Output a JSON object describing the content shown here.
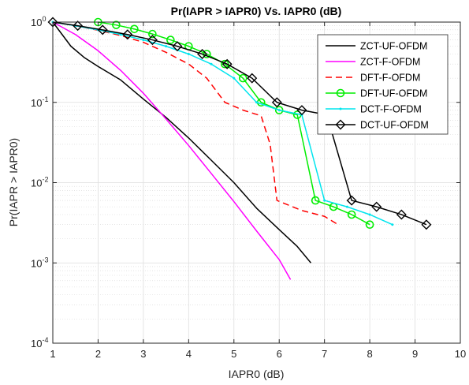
{
  "chart_data": {
    "type": "line",
    "title": "Pr(IAPR > IAPR0) Vs. IAPR0 (dB)",
    "xlabel": "IAPR0 (dB)",
    "ylabel": "Pr(IAPR > IAPR0)",
    "xlim": [
      1,
      10
    ],
    "ylim": [
      0.0001,
      1
    ],
    "yscale": "log",
    "grid": true,
    "minor_grid": true,
    "legend_position": "top-right",
    "x_ticks": [
      "1",
      "2",
      "3",
      "4",
      "5",
      "6",
      "7",
      "8",
      "9",
      "10"
    ],
    "y_ticks": [
      {
        "base": "10",
        "exp": "0"
      },
      {
        "base": "10",
        "exp": "-1"
      },
      {
        "base": "10",
        "exp": "-2"
      },
      {
        "base": "10",
        "exp": "-3"
      },
      {
        "base": "10",
        "exp": "-4"
      }
    ],
    "series": [
      {
        "name": "ZCT-UF-OFDM",
        "color": "#000000",
        "dash": "",
        "marker": "none",
        "points": [
          [
            1,
            1
          ],
          [
            1.4,
            0.5
          ],
          [
            1.7,
            0.36
          ],
          [
            2,
            0.28
          ],
          [
            2.5,
            0.19
          ],
          [
            3,
            0.11
          ],
          [
            3.5,
            0.065
          ],
          [
            4,
            0.036
          ],
          [
            4.5,
            0.019
          ],
          [
            5,
            0.01
          ],
          [
            5.5,
            0.0048
          ],
          [
            6,
            0.0026
          ],
          [
            6.4,
            0.0016
          ],
          [
            6.7,
            0.001
          ]
        ]
      },
      {
        "name": "ZCT-F-OFDM",
        "color": "#ff00ff",
        "dash": "",
        "marker": "none",
        "points": [
          [
            1,
            1
          ],
          [
            1.5,
            0.7
          ],
          [
            2,
            0.44
          ],
          [
            2.5,
            0.25
          ],
          [
            3,
            0.13
          ],
          [
            3.5,
            0.062
          ],
          [
            4,
            0.029
          ],
          [
            4.5,
            0.013
          ],
          [
            5,
            0.0058
          ],
          [
            5.5,
            0.0025
          ],
          [
            6,
            0.0011
          ],
          [
            6.25,
            0.00062
          ]
        ]
      },
      {
        "name": "DFT-F-OFDM",
        "color": "#ff0000",
        "dash": "8,5",
        "marker": "none",
        "points": [
          [
            1,
            1
          ],
          [
            1.6,
            0.88
          ],
          [
            2,
            0.79
          ],
          [
            2.5,
            0.68
          ],
          [
            3,
            0.56
          ],
          [
            3.5,
            0.42
          ],
          [
            4,
            0.3
          ],
          [
            4.4,
            0.2
          ],
          [
            4.8,
            0.1
          ],
          [
            5.2,
            0.08
          ],
          [
            5.6,
            0.068
          ],
          [
            5.8,
            0.03
          ],
          [
            5.95,
            0.006
          ],
          [
            6.5,
            0.0045
          ],
          [
            7,
            0.0038
          ],
          [
            7.3,
            0.003
          ]
        ]
      },
      {
        "name": "DFT-UF-OFDM",
        "color": "#00ee00",
        "dash": "",
        "marker": "circle",
        "points": [
          [
            2,
            1
          ],
          [
            2.4,
            0.92
          ],
          [
            2.8,
            0.82
          ],
          [
            3.2,
            0.71
          ],
          [
            3.6,
            0.6
          ],
          [
            4,
            0.5
          ],
          [
            4.4,
            0.4
          ],
          [
            4.8,
            0.3
          ],
          [
            5.2,
            0.2
          ],
          [
            5.6,
            0.1
          ],
          [
            6,
            0.08
          ],
          [
            6.4,
            0.07
          ],
          [
            6.8,
            0.006
          ],
          [
            7.2,
            0.005
          ],
          [
            7.6,
            0.004
          ],
          [
            8,
            0.003
          ]
        ]
      },
      {
        "name": "DCT-F-OFDM",
        "color": "#00e5ee",
        "dash": "",
        "marker": "dot",
        "points": [
          [
            1,
            1
          ],
          [
            1.5,
            0.9
          ],
          [
            2,
            0.8
          ],
          [
            2.5,
            0.7
          ],
          [
            3,
            0.6
          ],
          [
            3.5,
            0.5
          ],
          [
            4,
            0.4
          ],
          [
            4.5,
            0.3
          ],
          [
            5,
            0.2
          ],
          [
            5.5,
            0.1
          ],
          [
            6,
            0.08
          ],
          [
            6.5,
            0.07
          ],
          [
            7,
            0.006
          ],
          [
            7.5,
            0.005
          ],
          [
            8,
            0.004
          ],
          [
            8.5,
            0.003
          ]
        ]
      },
      {
        "name": "DCT-UF-OFDM",
        "color": "#000000",
        "dash": "",
        "marker": "diamond",
        "points": [
          [
            1,
            1
          ],
          [
            1.55,
            0.9
          ],
          [
            2.1,
            0.8
          ],
          [
            2.65,
            0.7
          ],
          [
            3.2,
            0.6
          ],
          [
            3.75,
            0.5
          ],
          [
            4.3,
            0.4
          ],
          [
            4.85,
            0.3
          ],
          [
            5.4,
            0.2
          ],
          [
            5.95,
            0.1
          ],
          [
            6.5,
            0.08
          ],
          [
            7.05,
            0.07
          ],
          [
            7.6,
            0.006
          ],
          [
            8.15,
            0.005
          ],
          [
            8.7,
            0.004
          ],
          [
            9.25,
            0.003
          ]
        ]
      }
    ]
  }
}
